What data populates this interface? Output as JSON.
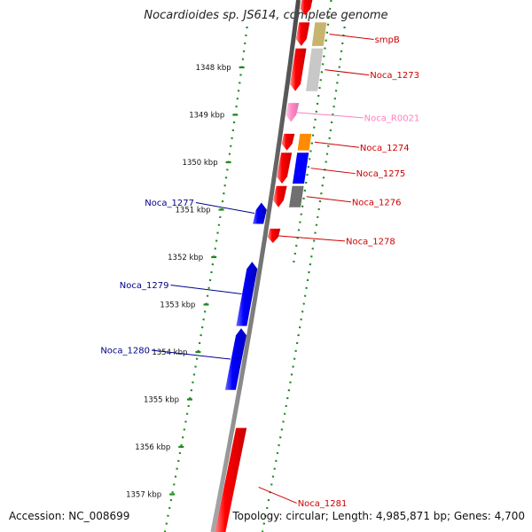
{
  "title": "Nocardioides sp. JS614, complete genome",
  "footer": {
    "accession": "Accession: NC_008699",
    "stats": "Topology: circular; Length: 4,985,871 bp; Genes: 4,700"
  },
  "colors": {
    "backbone": "#7a7a7a",
    "track_dots": "#1f8a1f",
    "forward_gene": "#ff0000",
    "reverse_gene": "#0000ff",
    "rna_gene": "#ff8ec8",
    "forward_label": "#cc0000",
    "reverse_label": "#00008b",
    "rna_label": "#ff80c0",
    "cog_olive": "#c8b46e",
    "cog_gray": "#c8c8c8",
    "cog_orange": "#ff8c00",
    "cog_blue": "#0000ff",
    "cog_darkgray": "#707070"
  },
  "scale_unit": "kbp",
  "scale_ticks": [
    1348,
    1349,
    1350,
    1351,
    1352,
    1353,
    1354,
    1355,
    1356,
    1357
  ],
  "genes": [
    {
      "label": "",
      "strand": "forward",
      "start_kbp": 1346.55,
      "end_kbp": 1346.9
    },
    {
      "label": "smpB",
      "strand": "forward",
      "start_kbp": 1347.05,
      "end_kbp": 1347.55,
      "cog": "cog_olive"
    },
    {
      "label": "Noca_1273",
      "strand": "forward",
      "start_kbp": 1347.6,
      "end_kbp": 1348.5,
      "cog": "cog_gray"
    },
    {
      "label": "Noca_R0021",
      "strand": "forward",
      "start_kbp": 1348.75,
      "end_kbp": 1349.15,
      "type": "rna"
    },
    {
      "label": "Noca_1274",
      "strand": "forward",
      "start_kbp": 1349.4,
      "end_kbp": 1349.75,
      "cog": "cog_orange"
    },
    {
      "label": "Noca_1275",
      "strand": "forward",
      "start_kbp": 1349.8,
      "end_kbp": 1350.45,
      "cog": "cog_blue"
    },
    {
      "label": "Noca_1276",
      "strand": "forward",
      "start_kbp": 1350.5,
      "end_kbp": 1350.95,
      "cog": "cog_darkgray"
    },
    {
      "label": "Noca_1277",
      "strand": "reverse",
      "start_kbp": 1350.85,
      "end_kbp": 1351.3
    },
    {
      "label": "Noca_1278",
      "strand": "forward",
      "start_kbp": 1351.4,
      "end_kbp": 1351.7
    },
    {
      "label": "Noca_1279",
      "strand": "reverse",
      "start_kbp": 1352.1,
      "end_kbp": 1353.45
    },
    {
      "label": "Noca_1280",
      "strand": "reverse",
      "start_kbp": 1353.5,
      "end_kbp": 1354.8
    },
    {
      "label": "Noca_1281",
      "strand": "forward",
      "start_kbp": 1355.6,
      "end_kbp": 1358.1
    }
  ]
}
